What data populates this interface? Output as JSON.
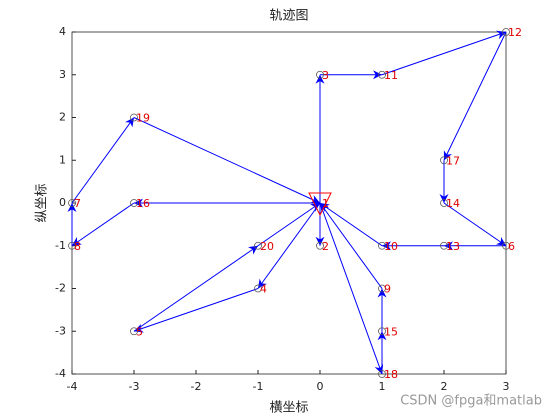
{
  "chart_data": {
    "type": "trajectory",
    "title": "轨迹图",
    "x_label": "横坐标",
    "y_label": "纵坐标",
    "xlim": [
      -4,
      3
    ],
    "ylim": [
      -4,
      4
    ],
    "xticks": [
      -4,
      -3,
      -2,
      -1,
      0,
      1,
      2,
      3
    ],
    "yticks": [
      -4,
      -3,
      -2,
      -1,
      0,
      1,
      2,
      3,
      4
    ],
    "line_color": "#0000ff",
    "node_label_color": "#e00000",
    "start_node": "1",
    "start_color": "#ff0000",
    "nodes": [
      {
        "label": "1",
        "x": 0,
        "y": 0
      },
      {
        "label": "2",
        "x": 0,
        "y": -1
      },
      {
        "label": "3",
        "x": 0,
        "y": 3
      },
      {
        "label": "4",
        "x": -1,
        "y": -2
      },
      {
        "label": "5",
        "x": -3,
        "y": -3
      },
      {
        "label": "6",
        "x": 3,
        "y": -1
      },
      {
        "label": "7",
        "x": -4,
        "y": 0
      },
      {
        "label": "8",
        "x": -4,
        "y": -1
      },
      {
        "label": "9",
        "x": 1,
        "y": -2
      },
      {
        "label": "10",
        "x": 1,
        "y": -1
      },
      {
        "label": "11",
        "x": 1,
        "y": 3
      },
      {
        "label": "12",
        "x": 3,
        "y": 4
      },
      {
        "label": "13",
        "x": 2,
        "y": -1
      },
      {
        "label": "14",
        "x": 2,
        "y": 0
      },
      {
        "label": "15",
        "x": 1,
        "y": -3
      },
      {
        "label": "16",
        "x": -3,
        "y": 0
      },
      {
        "label": "17",
        "x": 2,
        "y": 1
      },
      {
        "label": "18",
        "x": 1,
        "y": -4
      },
      {
        "label": "19",
        "x": -3,
        "y": 2
      },
      {
        "label": "20",
        "x": -1,
        "y": -1
      }
    ],
    "edges": [
      [
        "1",
        "2"
      ],
      [
        "1",
        "3"
      ],
      [
        "3",
        "11"
      ],
      [
        "11",
        "12"
      ],
      [
        "12",
        "17"
      ],
      [
        "17",
        "14"
      ],
      [
        "14",
        "6"
      ],
      [
        "6",
        "13"
      ],
      [
        "13",
        "10"
      ],
      [
        "10",
        "1"
      ],
      [
        "1",
        "18"
      ],
      [
        "18",
        "15"
      ],
      [
        "15",
        "9"
      ],
      [
        "9",
        "1"
      ],
      [
        "5",
        "20"
      ],
      [
        "20",
        "1"
      ],
      [
        "1",
        "4"
      ],
      [
        "4",
        "5"
      ],
      [
        "1",
        "16"
      ],
      [
        "16",
        "8"
      ],
      [
        "8",
        "7"
      ],
      [
        "7",
        "19"
      ],
      [
        "19",
        "1"
      ]
    ]
  },
  "watermark": "CSDN @fpga和matlab"
}
